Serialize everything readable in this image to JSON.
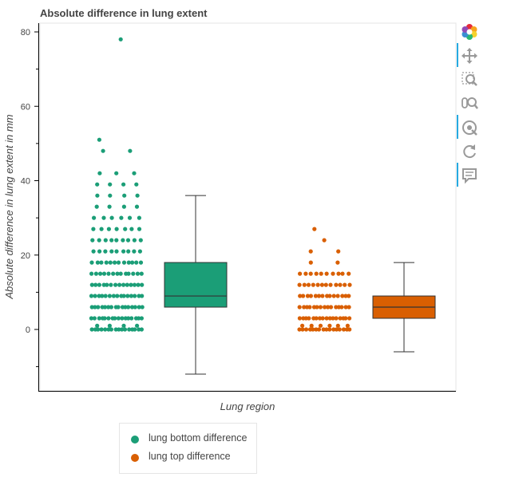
{
  "chart_data": {
    "type": "box",
    "title": "Absolute difference in lung extent",
    "xlabel": "Lung region",
    "ylabel": "Absolute difference in lung extent in mm",
    "ylim": [
      -16,
      84
    ],
    "yticks": [
      0,
      20,
      40,
      60,
      80
    ],
    "grid": false,
    "legend_position": "bottom-left",
    "series": [
      {
        "name": "lung bottom difference",
        "color": "#1b9e77",
        "box": {
          "whisker_low": -12,
          "q1": 6,
          "median": 9,
          "q3": 18,
          "whisker_high": 36
        },
        "points": [
          {
            "y": 0,
            "count": 16
          },
          {
            "y": 1,
            "count": 4
          },
          {
            "y": 3,
            "count": 16
          },
          {
            "y": 6,
            "count": 16
          },
          {
            "y": 9,
            "count": 15
          },
          {
            "y": 12,
            "count": 14
          },
          {
            "y": 15,
            "count": 13
          },
          {
            "y": 18,
            "count": 12
          },
          {
            "y": 21,
            "count": 9
          },
          {
            "y": 24,
            "count": 9
          },
          {
            "y": 27,
            "count": 7
          },
          {
            "y": 30,
            "count": 6
          },
          {
            "y": 33,
            "count": 4
          },
          {
            "y": 36,
            "count": 4
          },
          {
            "y": 39,
            "count": 4
          },
          {
            "y": 42,
            "count": 3
          },
          {
            "y": 48,
            "count": 2
          },
          {
            "y": 51,
            "count": 1
          },
          {
            "y": 78,
            "count": 1
          }
        ]
      },
      {
        "name": "lung top difference",
        "color": "#d95f02",
        "box": {
          "whisker_low": -6,
          "q1": 3,
          "median": 6,
          "q3": 9,
          "whisker_high": 18
        },
        "points": [
          {
            "y": 0,
            "count": 16
          },
          {
            "y": 1,
            "count": 6
          },
          {
            "y": 3,
            "count": 16
          },
          {
            "y": 6,
            "count": 15
          },
          {
            "y": 9,
            "count": 14
          },
          {
            "y": 12,
            "count": 12
          },
          {
            "y": 15,
            "count": 10
          },
          {
            "y": 18,
            "count": 2
          },
          {
            "y": 21,
            "count": 2
          },
          {
            "y": 24,
            "count": 1
          },
          {
            "y": 27,
            "count": 1
          }
        ]
      }
    ]
  },
  "toolbar": {
    "tools": [
      "bokeh-logo-icon",
      "pan-icon",
      "box-zoom-icon",
      "wheel-zoom-icon",
      "tap-icon",
      "reset-icon",
      "hover-icon"
    ]
  }
}
